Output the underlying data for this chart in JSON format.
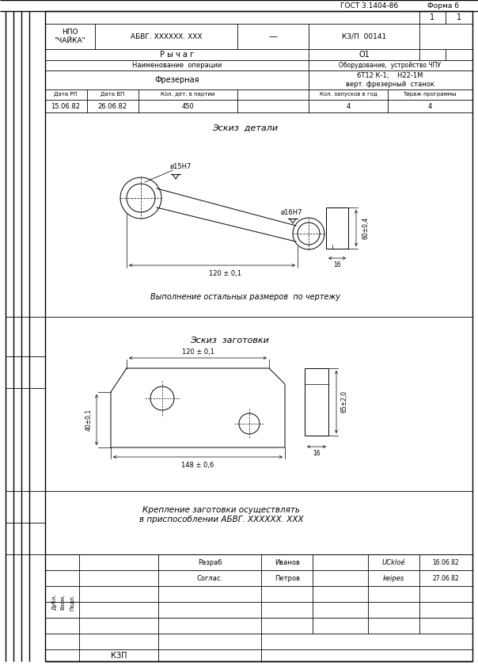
{
  "title_gost": "ГОСТ 3.1404-86",
  "title_forma": "Форма 6",
  "org": "НПО\n\"ЧАЙКА\"",
  "doc_code": "АБВГ. XXXXXX. XXX",
  "dash": "—",
  "kzp": "КЗ/П  00141",
  "detail_name": "Р ы ч а г",
  "op_num": "О1",
  "op_label": "Наименование  операции",
  "equipment_label": "Оборудование,  устройство ЧПУ",
  "op_name": "Фрезерная",
  "equipment": "6Т12 К-1;    Н22-1М\nверт. фрезерный  станок",
  "col_headers": [
    "Дата РП",
    "Дата ВП",
    "Кол. дет. в партии",
    "Кол. запусков в год",
    "Тираж программы"
  ],
  "col_values": [
    "15.06.82",
    "26.06.82",
    "450",
    "4",
    "4"
  ],
  "sketch_detail": "Эскиз  детали",
  "sketch_blank": "Эскиз  заготовки",
  "note": "Выполнение остальных размеров  по чертежу",
  "fixture": "Крепление заготовки осуществлять\nв приспособлении АБВГ. XXXXXX. XXX",
  "razrab": "Разраб",
  "soglas": "Сoглас.",
  "name1": "Иванов",
  "name2": "Петров",
  "sig1": "UCkloé",
  "sig2": "keipes",
  "date1": "16.06.82",
  "date2": "27.06.82",
  "kzp_bottom": "КЗП",
  "page1": "1",
  "page2": "1",
  "dub": "Дубл.",
  "vzom": "Взом.",
  "podp": "Подп.",
  "bg": "#ffffff",
  "line_color": "#000000"
}
